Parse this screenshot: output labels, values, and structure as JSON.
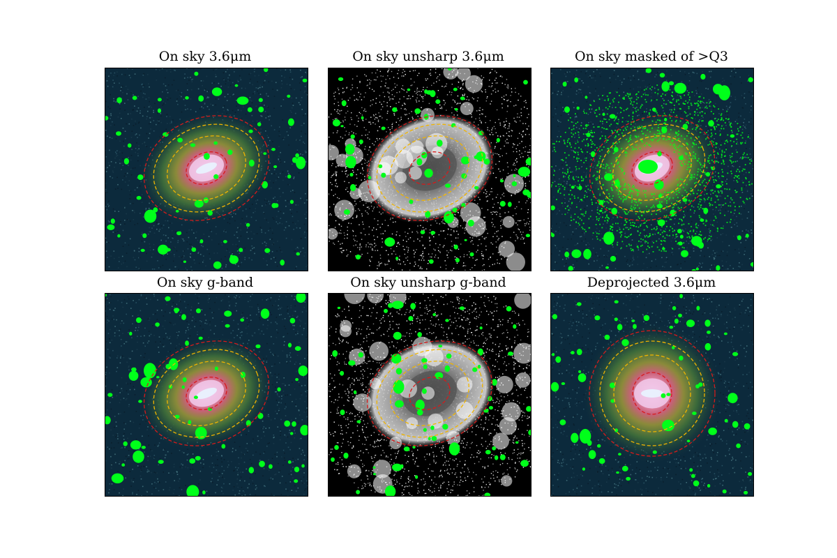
{
  "panels": [
    {
      "id": "p1",
      "title": "On sky 3.6μm",
      "style": "color",
      "ellipse": "tilted"
    },
    {
      "id": "p2",
      "title": "On sky unsharp 3.6μm",
      "style": "unsharp",
      "ellipse": "tilted"
    },
    {
      "id": "p3",
      "title": "On sky masked of >Q3",
      "style": "masked",
      "ellipse": "tilted"
    },
    {
      "id": "p4",
      "title": "On sky g-band",
      "style": "color",
      "ellipse": "tilted"
    },
    {
      "id": "p5",
      "title": "On sky unsharp g-band",
      "style": "unsharp",
      "ellipse": "tilted"
    },
    {
      "id": "p6",
      "title": "Deprojected 3.6μm",
      "style": "color",
      "ellipse": "round"
    }
  ],
  "colors": {
    "background_color": "#0c2a3c",
    "mask_green": "#00ff1a",
    "ellipse_red": "#d81a1a",
    "ellipse_gold": "#f0b400"
  }
}
